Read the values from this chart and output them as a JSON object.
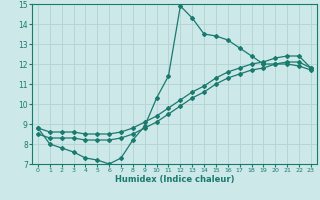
{
  "xlabel": "Humidex (Indice chaleur)",
  "xlim": [
    -0.5,
    23.5
  ],
  "ylim": [
    7,
    15
  ],
  "xticks": [
    0,
    1,
    2,
    3,
    4,
    5,
    6,
    7,
    8,
    9,
    10,
    11,
    12,
    13,
    14,
    15,
    16,
    17,
    18,
    19,
    20,
    21,
    22,
    23
  ],
  "yticks": [
    7,
    8,
    9,
    10,
    11,
    12,
    13,
    14,
    15
  ],
  "bg_color": "#cce8e8",
  "line_color": "#1a7a6e",
  "grid_color": "#b8d4d4",
  "lines": [
    {
      "x": [
        0,
        1,
        2,
        3,
        4,
        5,
        6,
        7,
        8,
        9,
        10,
        11,
        12,
        13,
        14,
        15,
        16,
        17,
        18,
        19,
        20,
        21,
        22,
        23
      ],
      "y": [
        8.8,
        8.0,
        7.8,
        7.6,
        7.3,
        7.2,
        7.0,
        7.3,
        8.2,
        8.9,
        10.3,
        11.4,
        14.9,
        14.3,
        13.5,
        13.4,
        13.2,
        12.8,
        12.4,
        12.0,
        12.0,
        12.0,
        11.9,
        11.7
      ]
    },
    {
      "x": [
        0,
        1,
        2,
        3,
        4,
        5,
        6,
        7,
        8,
        9,
        10,
        11,
        12,
        13,
        14,
        15,
        16,
        17,
        18,
        19,
        20,
        21,
        22,
        23
      ],
      "y": [
        8.5,
        8.3,
        8.3,
        8.3,
        8.2,
        8.2,
        8.2,
        8.3,
        8.5,
        8.8,
        9.1,
        9.5,
        9.9,
        10.3,
        10.6,
        11.0,
        11.3,
        11.5,
        11.7,
        11.8,
        12.0,
        12.1,
        12.1,
        11.8
      ]
    },
    {
      "x": [
        0,
        1,
        2,
        3,
        4,
        5,
        6,
        7,
        8,
        9,
        10,
        11,
        12,
        13,
        14,
        15,
        16,
        17,
        18,
        19,
        20,
        21,
        22,
        23
      ],
      "y": [
        8.8,
        8.6,
        8.6,
        8.6,
        8.5,
        8.5,
        8.5,
        8.6,
        8.8,
        9.1,
        9.4,
        9.8,
        10.2,
        10.6,
        10.9,
        11.3,
        11.6,
        11.8,
        12.0,
        12.1,
        12.3,
        12.4,
        12.4,
        11.8
      ]
    }
  ]
}
